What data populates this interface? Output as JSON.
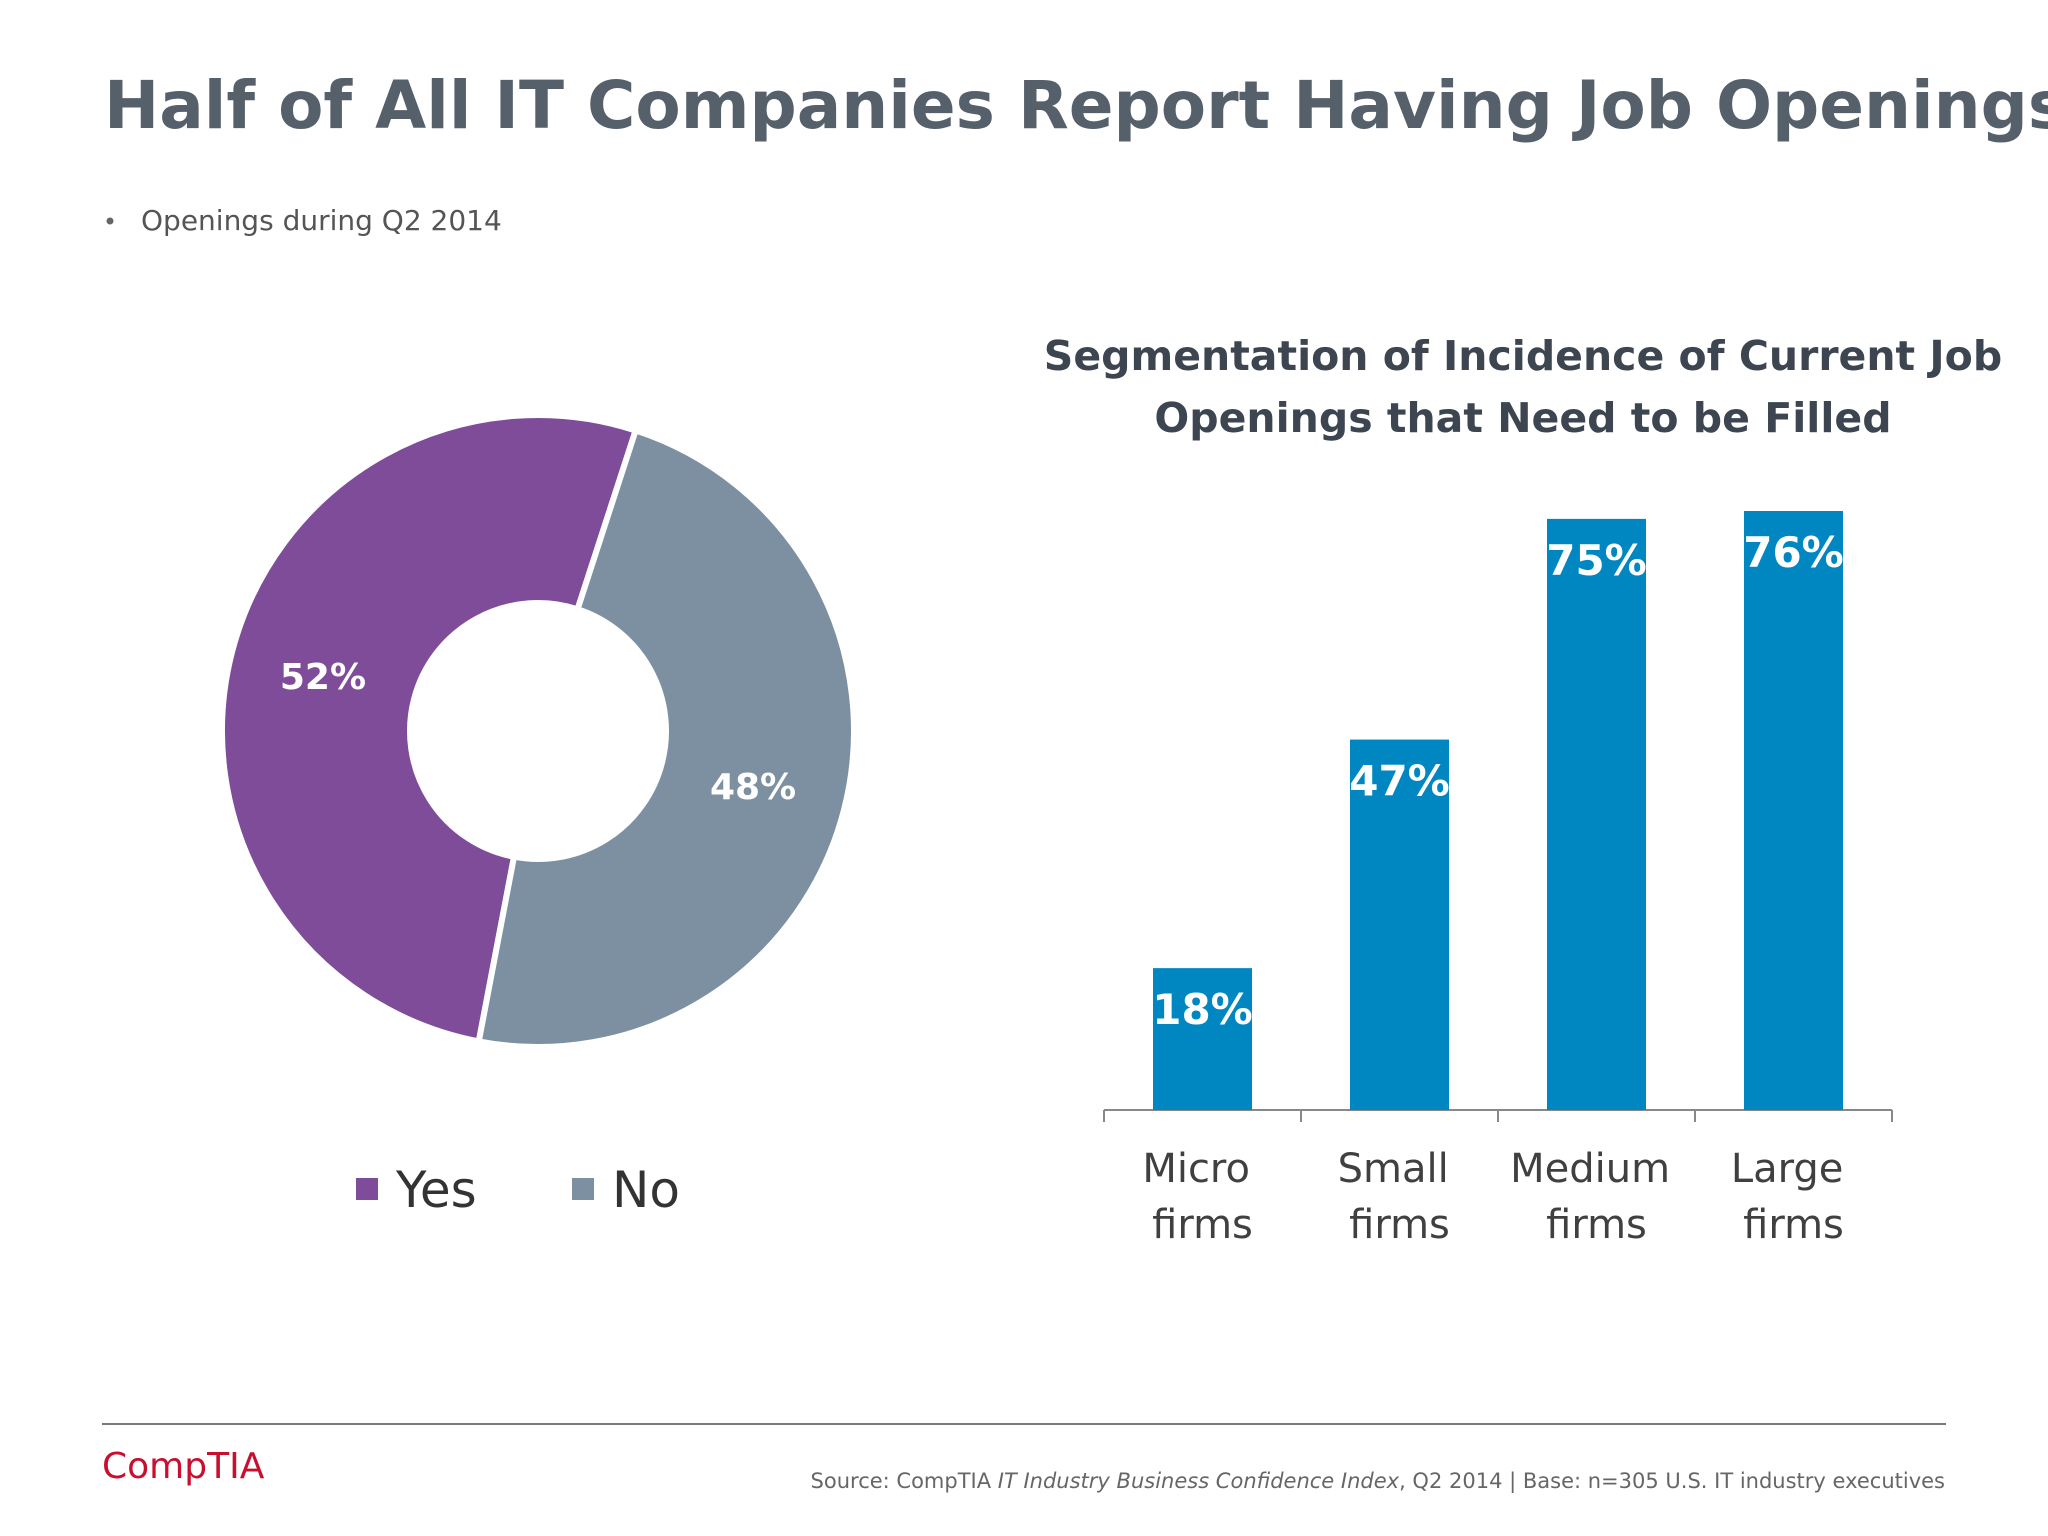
{
  "title": "Half of All IT Companies Report Having Job Openings",
  "bullet": "Openings during Q2 2014",
  "logo": "CompTIA",
  "source": [
    "Source: CompTIA ",
    "IT Industry Business Confidence Index",
    ", Q2 2014 | Base: n=305 U.S. IT industry executives"
  ],
  "chart_data": [
    {
      "type": "pie",
      "categories": [
        "Yes",
        "No"
      ],
      "values": [
        52,
        48
      ],
      "value_labels": [
        "52%",
        "48%"
      ],
      "colors": [
        "#7f4c9a",
        "#7d90a1"
      ],
      "legend": "bottom"
    },
    {
      "type": "bar",
      "title": [
        "Segmentation of Incidence of Current Job",
        "Openings that Need to be Filled"
      ],
      "categories": [
        "Micro firms",
        "Small firms",
        "Medium firms",
        "Large firms"
      ],
      "values": [
        18,
        47,
        75,
        76
      ],
      "value_labels": [
        "18%",
        "47%",
        "75%",
        "76%"
      ],
      "color": "#0087c1"
    }
  ]
}
